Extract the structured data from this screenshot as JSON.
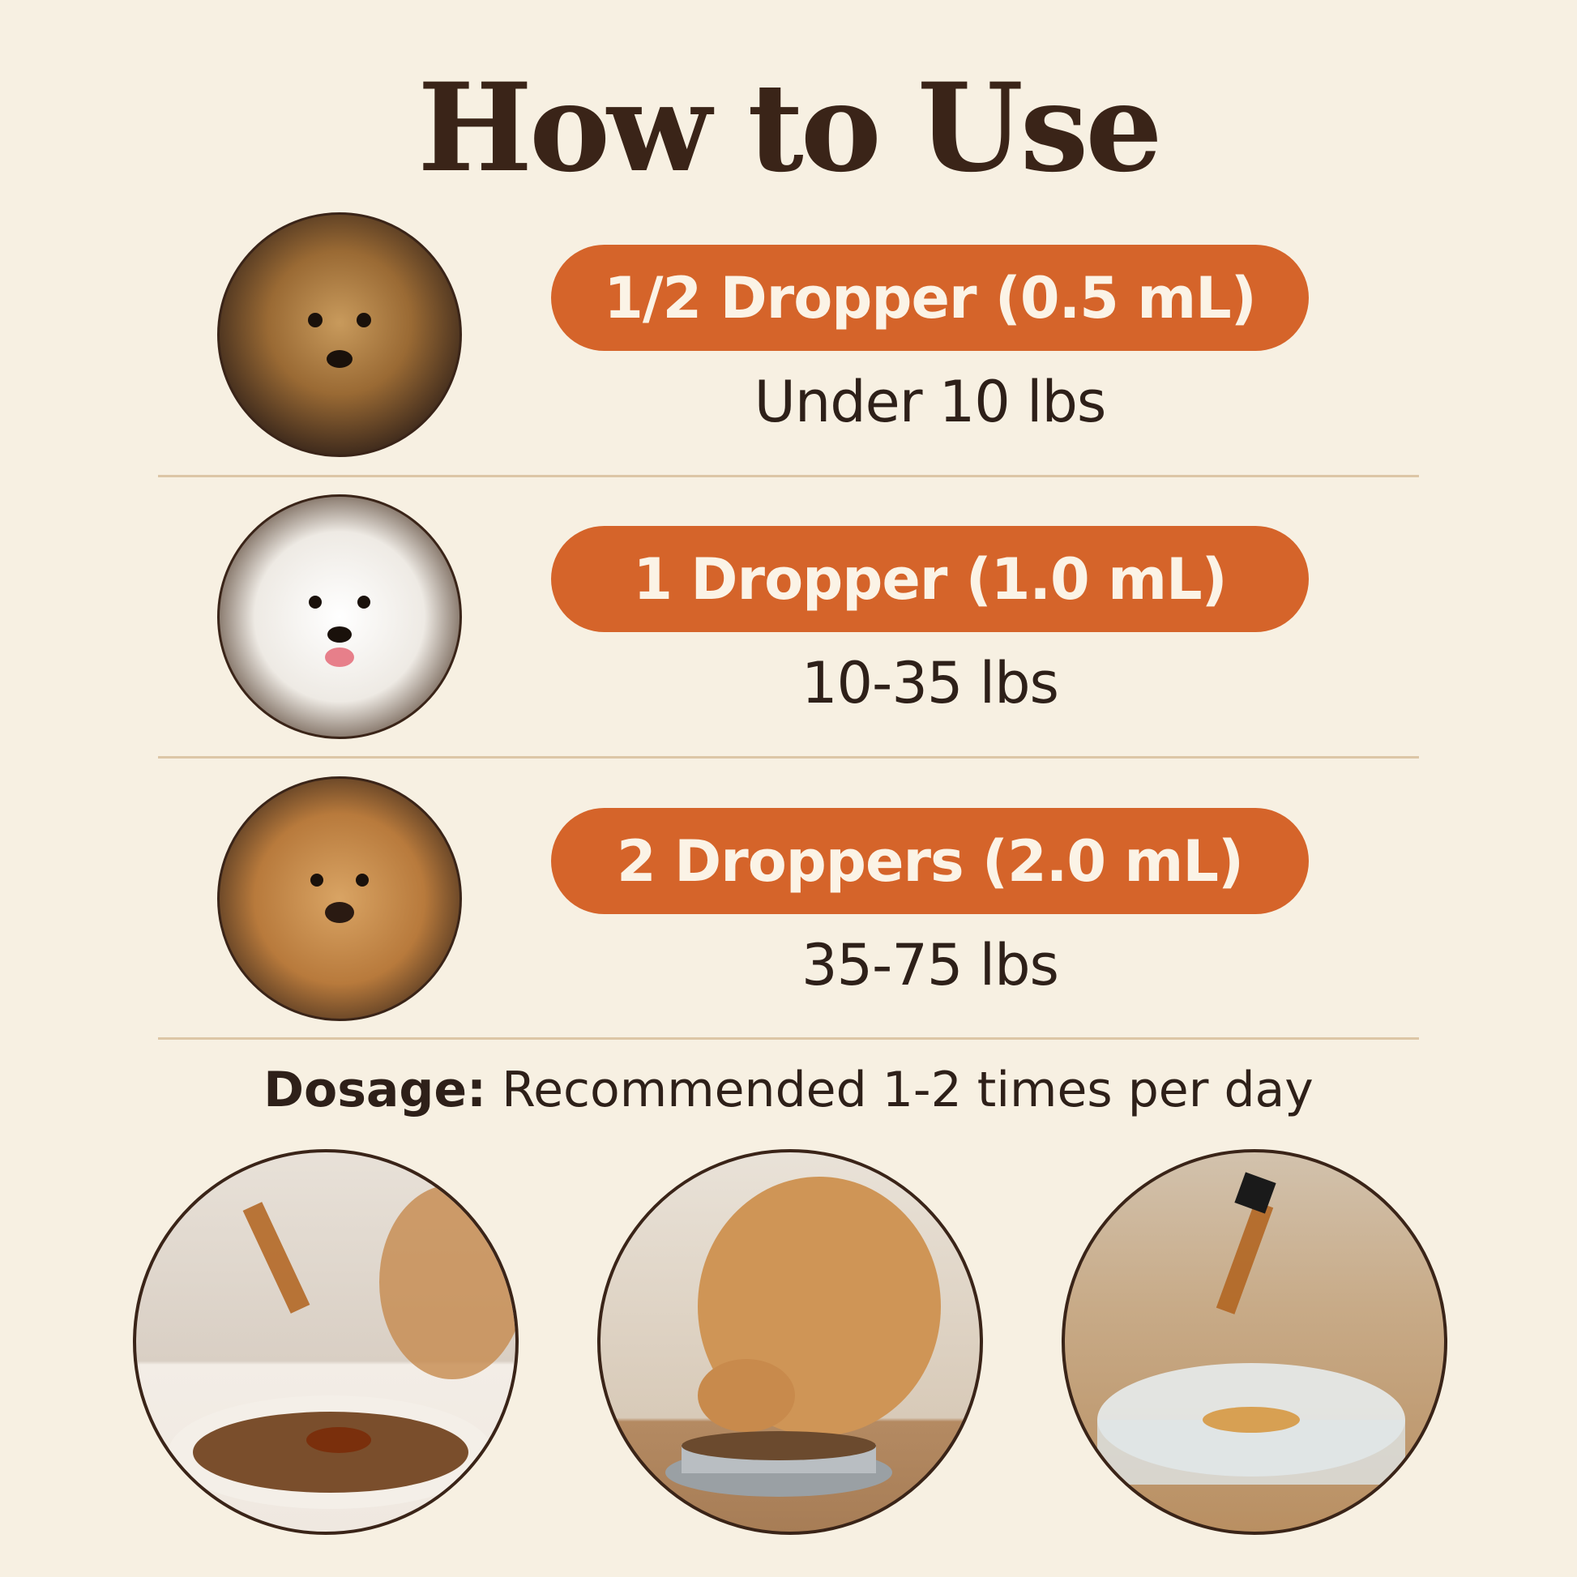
{
  "title": "How to Use",
  "rows": [
    {
      "dose": "1/2 Dropper (0.5 mL)",
      "weight": "Under 10 lbs",
      "image": "yorkshire-terrier-photo"
    },
    {
      "dose": "1 Dropper (1.0 mL)",
      "weight": "10-35 lbs",
      "image": "samoyed-photo"
    },
    {
      "dose": "2 Droppers (2.0 mL)",
      "weight": "35-75 lbs",
      "image": "golden-retriever-photo"
    }
  ],
  "dosage": {
    "label": "Dosage:",
    "text": "Recommended 1-2 times per day"
  },
  "photos": [
    "dropper-over-kibble-photo",
    "dog-eating-from-bowl-photo",
    "dropper-into-water-photo"
  ],
  "colors": {
    "background": "#f7f0e2",
    "pill": "#d5642a",
    "text": "#2e2019",
    "divider": "#dcc6a6"
  }
}
